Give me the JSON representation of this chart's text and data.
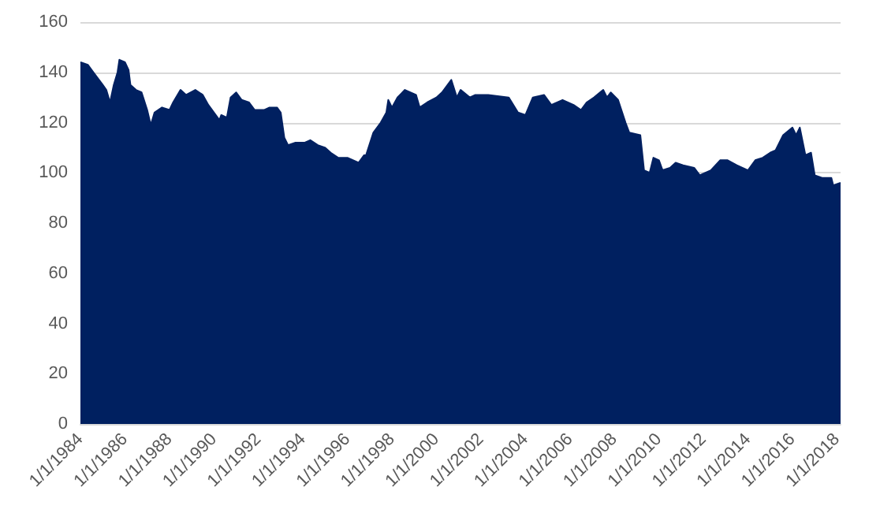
{
  "chart_data": {
    "type": "area",
    "x": [
      "1984-01",
      "1984-05",
      "1984-08",
      "1985-01",
      "1985-03",
      "1985-05",
      "1985-07",
      "1985-09",
      "1985-10",
      "1986-01",
      "1986-03",
      "1986-04",
      "1986-07",
      "1986-10",
      "1987-01",
      "1987-03",
      "1987-05",
      "1987-09",
      "1988-01",
      "1988-03",
      "1988-07",
      "1988-10",
      "1989-03",
      "1989-07",
      "1989-10",
      "1990-04",
      "1990-05",
      "1990-08",
      "1990-10",
      "1991-01",
      "1991-04",
      "1991-08",
      "1991-11",
      "1992-04",
      "1992-07",
      "1992-11",
      "1993-01",
      "1993-03",
      "1993-05",
      "1993-09",
      "1994-02",
      "1994-05",
      "1994-09",
      "1995-01",
      "1995-04",
      "1995-08",
      "1996-01",
      "1996-07",
      "1996-10",
      "1996-11",
      "1997-03",
      "1997-07",
      "1997-10",
      "1997-11",
      "1998-01",
      "1998-04",
      "1998-08",
      "1999-02",
      "1999-04",
      "1999-08",
      "2000-01",
      "2000-04",
      "2000-09",
      "2000-12",
      "2001-02",
      "2001-07",
      "2001-10",
      "2002-05",
      "2003-04",
      "2003-09",
      "2004-01",
      "2004-05",
      "2004-11",
      "2005-03",
      "2005-09",
      "2006-03",
      "2006-07",
      "2006-10",
      "2007-02",
      "2007-07",
      "2007-09",
      "2007-11",
      "2008-03",
      "2008-07",
      "2008-09",
      "2009-03",
      "2009-05",
      "2009-08",
      "2009-10",
      "2010-01",
      "2010-03",
      "2010-07",
      "2010-10",
      "2011-02",
      "2011-08",
      "2011-11",
      "2012-05",
      "2012-10",
      "2013-02",
      "2013-07",
      "2014-01",
      "2014-05",
      "2014-09",
      "2015-01",
      "2015-04",
      "2015-08",
      "2016-01",
      "2016-03",
      "2016-05",
      "2016-08",
      "2016-11",
      "2017-01",
      "2017-05",
      "2017-10",
      "2017-11",
      "2018-03"
    ],
    "series": [
      {
        "color": "#002060",
        "values": [
          144,
          143,
          140,
          135,
          133,
          128,
          135,
          140,
          145,
          144,
          141,
          135,
          133,
          132,
          125,
          119,
          124,
          126,
          125,
          128,
          133,
          131,
          133,
          131,
          127,
          121,
          123,
          122,
          130,
          132,
          129,
          128,
          125,
          125,
          126,
          126,
          124,
          114,
          111,
          112,
          112,
          113,
          111,
          110,
          108,
          106,
          106,
          104,
          107,
          107,
          116,
          120,
          124,
          129,
          126,
          130,
          133,
          131,
          126,
          128,
          130,
          132,
          137,
          130,
          133,
          130,
          131,
          131,
          130,
          124,
          123,
          130,
          131,
          127,
          129,
          127,
          125,
          128,
          130,
          133,
          130,
          132,
          129,
          120,
          116,
          115,
          101,
          100,
          106,
          105,
          101,
          102,
          104,
          103,
          102,
          99,
          101,
          105,
          105,
          103,
          101,
          105,
          106,
          108,
          109,
          115,
          118,
          115,
          118,
          107,
          108,
          99,
          98,
          98,
          95,
          96
        ]
      }
    ],
    "xlim": [
      "1984-01",
      "2018-03"
    ],
    "xticks": [
      {
        "value": "1984-01",
        "label": "1/1/1984"
      },
      {
        "value": "1986-01",
        "label": "1/1/1986"
      },
      {
        "value": "1988-01",
        "label": "1/1/1988"
      },
      {
        "value": "1990-01",
        "label": "1/1/1990"
      },
      {
        "value": "1992-01",
        "label": "1/1/1992"
      },
      {
        "value": "1994-01",
        "label": "1/1/1994"
      },
      {
        "value": "1996-01",
        "label": "1/1/1996"
      },
      {
        "value": "1998-01",
        "label": "1/1/1998"
      },
      {
        "value": "2000-01",
        "label": "1/1/2000"
      },
      {
        "value": "2002-01",
        "label": "1/1/2002"
      },
      {
        "value": "2004-01",
        "label": "1/1/2004"
      },
      {
        "value": "2006-01",
        "label": "1/1/2006"
      },
      {
        "value": "2008-01",
        "label": "1/1/2008"
      },
      {
        "value": "2010-01",
        "label": "1/1/2010"
      },
      {
        "value": "2012-01",
        "label": "1/1/2012"
      },
      {
        "value": "2014-01",
        "label": "1/1/2014"
      },
      {
        "value": "2016-01",
        "label": "1/1/2016"
      },
      {
        "value": "2018-01",
        "label": "1/1/2018"
      }
    ],
    "ylim": [
      0,
      160
    ],
    "yticks": [
      0,
      20,
      40,
      60,
      80,
      100,
      120,
      140,
      160
    ],
    "grid": "y"
  }
}
